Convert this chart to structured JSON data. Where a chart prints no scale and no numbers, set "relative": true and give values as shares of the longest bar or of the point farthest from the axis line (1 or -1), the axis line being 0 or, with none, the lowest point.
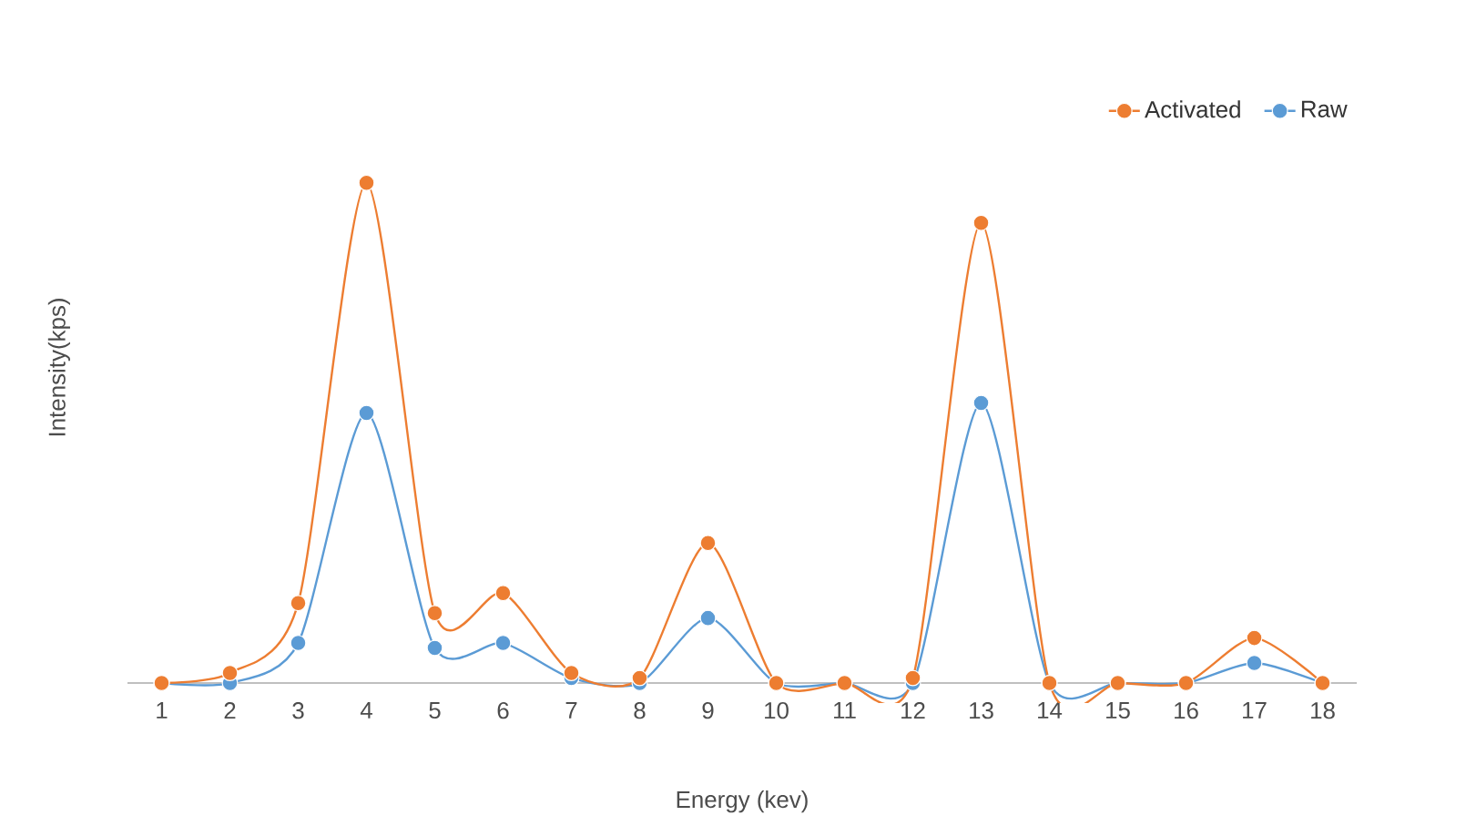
{
  "chart_data": {
    "type": "line",
    "relative": true,
    "xlabel": "Energy (kev)",
    "ylabel": "Intensity(kps)",
    "categories": [
      "1",
      "2",
      "3",
      "4",
      "5",
      "6",
      "7",
      "8",
      "9",
      "10",
      "11",
      "12",
      "13",
      "14",
      "15",
      "16",
      "17",
      "18"
    ],
    "series": [
      {
        "name": "Activated",
        "color": "#ed7d31",
        "values": [
          0,
          0.02,
          0.16,
          1,
          0.14,
          0.18,
          0.02,
          0.01,
          0.28,
          0,
          0,
          0.01,
          0.92,
          0,
          0,
          0,
          0.09,
          0
        ]
      },
      {
        "name": "Raw",
        "color": "#5b9bd5",
        "values": [
          0,
          0,
          0.08,
          0.54,
          0.07,
          0.08,
          0.01,
          0,
          0.13,
          0,
          0,
          0,
          0.56,
          0,
          0,
          0,
          0.04,
          0
        ]
      }
    ],
    "marker": "circle",
    "legend": "top right",
    "tick_labels": "x"
  }
}
